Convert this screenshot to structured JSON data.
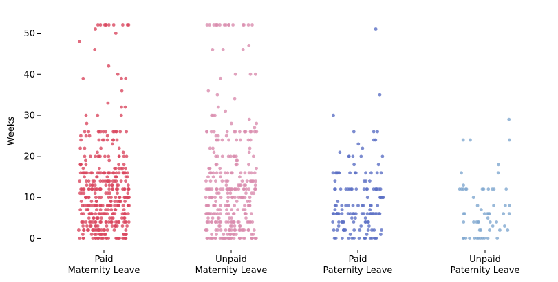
{
  "chart_data": {
    "type": "scatter",
    "subtype": "strip",
    "title": "",
    "xlabel": "",
    "ylabel": "Weeks",
    "ylim": [
      -2.6,
      54.6
    ],
    "yticks": [
      0,
      10,
      20,
      30,
      40,
      50
    ],
    "grid": false,
    "legend": "none",
    "categories": [
      [
        "Paid",
        "Maternity Leave"
      ],
      [
        "Unpaid",
        "Maternity Leave"
      ],
      [
        "Paid",
        "Paternity Leave"
      ],
      [
        "Unpaid",
        "Paternity Leave"
      ]
    ],
    "series": [
      {
        "color": "#d9475f",
        "jitter": 0.2,
        "values": [
          52,
          52,
          52,
          52,
          52,
          52,
          52,
          52,
          52,
          52,
          51,
          50,
          48,
          46,
          42,
          40,
          39,
          39,
          39,
          36,
          33,
          32,
          32,
          30,
          30,
          30,
          28,
          26,
          26,
          26,
          26,
          26,
          26,
          26,
          26,
          26,
          26,
          26,
          26,
          26,
          25,
          25,
          25,
          25,
          24,
          24,
          24,
          24,
          24,
          24,
          24,
          24,
          23,
          22,
          22,
          22,
          22,
          21,
          21,
          20,
          20,
          20,
          20,
          20,
          20,
          20,
          20,
          20,
          20,
          20,
          20,
          19,
          19,
          18,
          18,
          18,
          18,
          18,
          18,
          18,
          17,
          17,
          17,
          17,
          17,
          17,
          17,
          17,
          16,
          16,
          16,
          16,
          16,
          16,
          16,
          16,
          16,
          16,
          16,
          16,
          16,
          16,
          16,
          16,
          16,
          16,
          16,
          16,
          16,
          16,
          16,
          16,
          16,
          16,
          16,
          15,
          15,
          15,
          15,
          15,
          15,
          15,
          15,
          15,
          14,
          14,
          14,
          14,
          14,
          14,
          14,
          14,
          14,
          14,
          14,
          14,
          14,
          14,
          14,
          14,
          14,
          14,
          13,
          13,
          13,
          13,
          13,
          13,
          13,
          13,
          13,
          13,
          13,
          13,
          12,
          12,
          12,
          12,
          12,
          12,
          12,
          12,
          12,
          12,
          12,
          12,
          12,
          12,
          12,
          12,
          12,
          12,
          12,
          12,
          12,
          12,
          12,
          12,
          12,
          12,
          12,
          12,
          12,
          12,
          11,
          11,
          11,
          11,
          11,
          11,
          11,
          11,
          11,
          10,
          10,
          10,
          10,
          10,
          10,
          10,
          10,
          10,
          10,
          10,
          10,
          10,
          10,
          10,
          10,
          10,
          10,
          10,
          10,
          9,
          9,
          9,
          9,
          9,
          9,
          9,
          9,
          9,
          9,
          9,
          9,
          9,
          8,
          8,
          8,
          8,
          8,
          8,
          8,
          8,
          8,
          8,
          8,
          8,
          8,
          8,
          8,
          8,
          8,
          8,
          8,
          8,
          8,
          8,
          8,
          8,
          8,
          8,
          7,
          7,
          7,
          7,
          7,
          7,
          7,
          7,
          7,
          7,
          7,
          7,
          6,
          6,
          6,
          6,
          6,
          6,
          6,
          6,
          6,
          6,
          6,
          6,
          6,
          6,
          6,
          6,
          6,
          6,
          6,
          6,
          6,
          6,
          6,
          6,
          5,
          5,
          5,
          5,
          5,
          5,
          5,
          5,
          5,
          5,
          5,
          5,
          5,
          4,
          4,
          4,
          4,
          4,
          4,
          4,
          4,
          4,
          4,
          4,
          4,
          4,
          4,
          4,
          4,
          4,
          4,
          4,
          4,
          4,
          4,
          4,
          4,
          4,
          4,
          3,
          3,
          3,
          3,
          3,
          3,
          3,
          3,
          3,
          3,
          3,
          3,
          3,
          3,
          3,
          2,
          2,
          2,
          2,
          2,
          2,
          2,
          2,
          2,
          2,
          2,
          2,
          2,
          2,
          2,
          2,
          2,
          2,
          2,
          1,
          1,
          1,
          1,
          1,
          1,
          1,
          1,
          1,
          1,
          1,
          1,
          1,
          1,
          1,
          1,
          0,
          0,
          0,
          0,
          0,
          0,
          0,
          0,
          0,
          0,
          0,
          0,
          0,
          0,
          0,
          0,
          0,
          0,
          0,
          0,
          0,
          0,
          0,
          0,
          0,
          0
        ]
      },
      {
        "color": "#d98cae",
        "jitter": 0.2,
        "values": [
          52,
          52,
          52,
          52,
          52,
          52,
          52,
          52,
          52,
          52,
          52,
          52,
          52,
          52,
          52,
          52,
          47,
          46,
          46,
          46,
          40,
          40,
          40,
          39,
          36,
          35,
          34,
          32,
          31,
          30,
          30,
          30,
          29,
          28,
          28,
          27,
          26,
          26,
          26,
          26,
          26,
          26,
          26,
          26,
          26,
          26,
          26,
          26,
          26,
          26,
          26,
          25,
          25,
          25,
          24,
          24,
          24,
          24,
          24,
          24,
          24,
          24,
          24,
          22,
          22,
          22,
          21,
          21,
          20,
          20,
          20,
          20,
          20,
          20,
          20,
          20,
          20,
          19,
          19,
          18,
          18,
          18,
          18,
          18,
          17,
          17,
          17,
          17,
          16,
          16,
          16,
          16,
          16,
          16,
          16,
          16,
          16,
          16,
          16,
          16,
          16,
          16,
          15,
          15,
          15,
          15,
          14,
          14,
          14,
          14,
          14,
          14,
          14,
          14,
          14,
          14,
          14,
          14,
          14,
          13,
          13,
          13,
          13,
          13,
          13,
          13,
          12,
          12,
          12,
          12,
          12,
          12,
          12,
          12,
          12,
          12,
          12,
          12,
          12,
          12,
          12,
          12,
          12,
          12,
          12,
          12,
          12,
          12,
          12,
          12,
          12,
          12,
          12,
          12,
          12,
          12,
          12,
          11,
          11,
          11,
          11,
          11,
          11,
          11,
          10,
          10,
          10,
          10,
          10,
          10,
          10,
          10,
          10,
          10,
          10,
          10,
          10,
          10,
          10,
          10,
          10,
          10,
          10,
          9,
          9,
          9,
          9,
          9,
          8,
          8,
          8,
          8,
          8,
          8,
          8,
          8,
          8,
          8,
          8,
          8,
          8,
          8,
          8,
          8,
          8,
          8,
          7,
          7,
          7,
          7,
          7,
          7,
          7,
          6,
          6,
          6,
          6,
          6,
          6,
          6,
          6,
          6,
          6,
          6,
          6,
          6,
          6,
          6,
          6,
          6,
          6,
          6,
          6,
          5,
          5,
          5,
          5,
          5,
          5,
          5,
          4,
          4,
          4,
          4,
          4,
          4,
          4,
          4,
          4,
          4,
          4,
          4,
          4,
          4,
          4,
          4,
          4,
          4,
          4,
          4,
          4,
          4,
          4,
          4,
          3,
          3,
          3,
          3,
          3,
          3,
          3,
          2,
          2,
          2,
          2,
          2,
          2,
          2,
          2,
          2,
          2,
          2,
          2,
          2,
          2,
          2,
          2,
          2,
          2,
          2,
          2,
          1,
          1,
          1,
          1,
          1,
          1,
          1,
          1,
          1,
          1,
          1,
          0,
          0,
          0,
          0,
          0,
          0,
          0,
          0,
          0,
          0,
          0,
          0,
          0,
          0,
          0,
          0,
          0,
          0,
          0,
          0,
          0,
          0,
          0,
          0,
          0,
          0,
          0,
          0,
          0,
          0,
          0,
          0,
          0,
          0,
          0
        ]
      },
      {
        "color": "#5b6fc4",
        "jitter": 0.2,
        "values": [
          51,
          35,
          30,
          26,
          26,
          26,
          24,
          24,
          23,
          22,
          21,
          20,
          20,
          20,
          20,
          20,
          18,
          18,
          16,
          16,
          16,
          16,
          16,
          16,
          16,
          16,
          16,
          16,
          16,
          16,
          16,
          14,
          14,
          14,
          14,
          12,
          12,
          12,
          12,
          12,
          12,
          12,
          12,
          12,
          12,
          12,
          12,
          12,
          12,
          12,
          12,
          12,
          12,
          12,
          10,
          10,
          10,
          10,
          10,
          10,
          9,
          8,
          8,
          8,
          8,
          8,
          8,
          8,
          8,
          8,
          8,
          8,
          8,
          7,
          7,
          7,
          6,
          6,
          6,
          6,
          6,
          6,
          6,
          6,
          6,
          6,
          6,
          6,
          6,
          6,
          6,
          6,
          6,
          6,
          6,
          6,
          6,
          6,
          6,
          6,
          5,
          5,
          5,
          4,
          4,
          4,
          4,
          4,
          4,
          4,
          4,
          4,
          4,
          4,
          3,
          3,
          3,
          2,
          2,
          2,
          2,
          2,
          2,
          2,
          2,
          2,
          2,
          2,
          2,
          1,
          1,
          1,
          0,
          0,
          0,
          0,
          0,
          0,
          0,
          0,
          0,
          0,
          0,
          0,
          0,
          0,
          0
        ]
      },
      {
        "color": "#7fa7cf",
        "jitter": 0.2,
        "values": [
          29,
          24,
          24,
          24,
          18,
          16,
          16,
          13,
          12,
          12,
          12,
          12,
          12,
          12,
          12,
          12,
          12,
          12,
          12,
          10,
          8,
          8,
          8,
          8,
          7,
          6,
          6,
          6,
          6,
          6,
          6,
          6,
          6,
          5,
          4,
          4,
          4,
          4,
          4,
          4,
          4,
          3,
          3,
          2,
          2,
          2,
          2,
          2,
          0,
          0,
          0,
          0,
          0,
          0,
          0,
          0,
          0,
          0,
          0,
          0
        ]
      }
    ]
  },
  "axis": {
    "ylabel": "Weeks",
    "ytick_labels": [
      "0",
      "10",
      "20",
      "30",
      "40",
      "50"
    ]
  }
}
